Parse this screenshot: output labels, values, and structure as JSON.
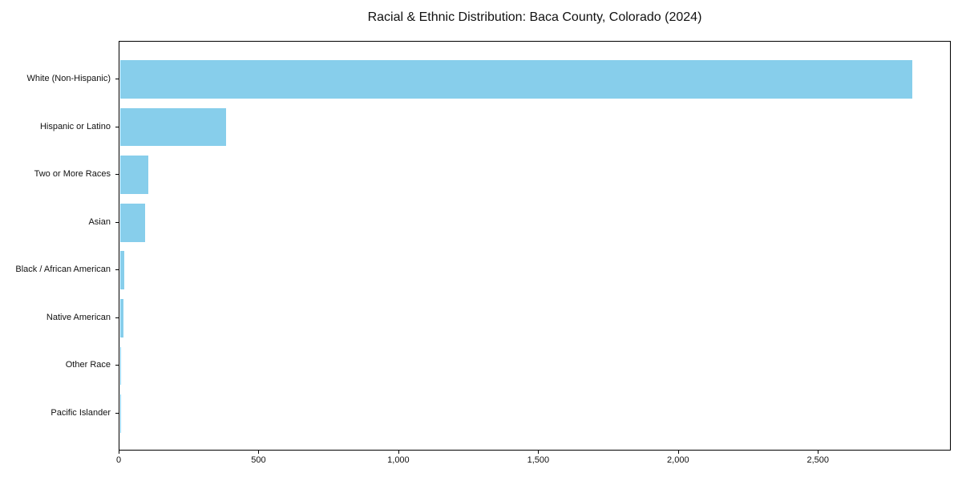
{
  "chart_data": {
    "type": "bar",
    "orientation": "horizontal",
    "title": "Racial & Ethnic Distribution: Baca County, Colorado (2024)",
    "xlabel": "",
    "ylabel": "",
    "grid": false,
    "legend": false,
    "bar_color": "#87CEEB",
    "axis_color": "#000000",
    "text_color": "#111111",
    "background_color": "#ffffff",
    "categories": [
      "White (Non-Hispanic)",
      "Hispanic or Latino",
      "Two or More Races",
      "Asian",
      "Black / African American",
      "Native American",
      "Other Race",
      "Pacific Islander"
    ],
    "values": [
      2833,
      378,
      100,
      90,
      14,
      12,
      3,
      1
    ],
    "xlim": [
      0,
      2975
    ],
    "x_ticks": [
      {
        "value": 0,
        "label": "0"
      },
      {
        "value": 500,
        "label": "500"
      },
      {
        "value": 1000,
        "label": "1,000"
      },
      {
        "value": 1500,
        "label": "1,500"
      },
      {
        "value": 2000,
        "label": "2,000"
      },
      {
        "value": 2500,
        "label": "2,500"
      }
    ]
  }
}
